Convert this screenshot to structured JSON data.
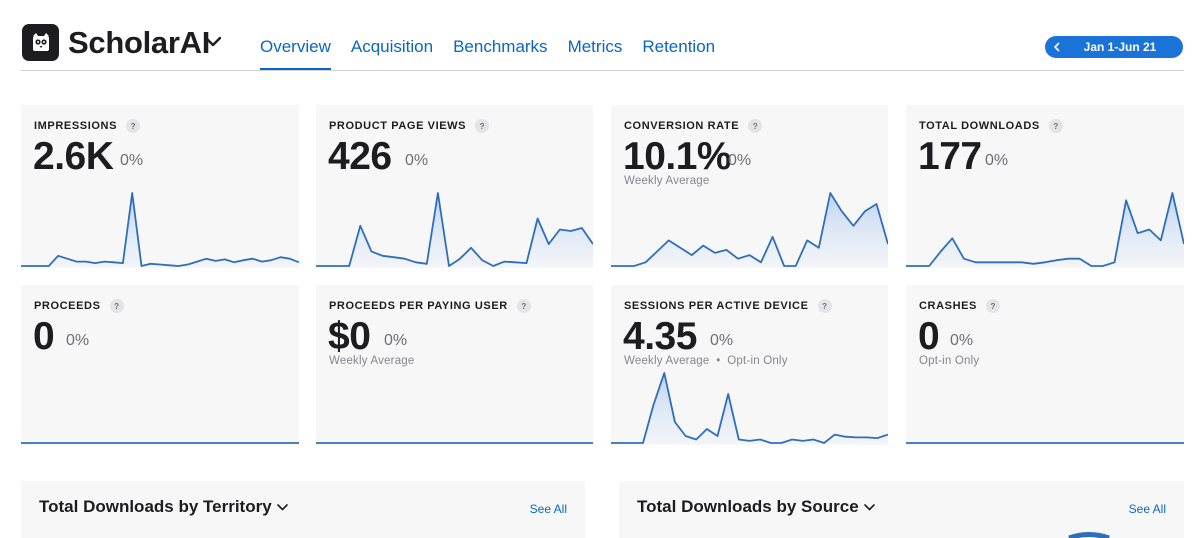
{
  "app": {
    "title": "ScholarAI"
  },
  "tabs": [
    {
      "label": "Overview",
      "active": true
    },
    {
      "label": "Acquisition"
    },
    {
      "label": "Benchmarks"
    },
    {
      "label": "Metrics"
    },
    {
      "label": "Retention"
    }
  ],
  "date_range": {
    "label": "Jan 1-Jun 21"
  },
  "colors": {
    "accent": "#0a66c2",
    "spark_line": "#2f6fb8",
    "card_bg": "#f7f7f8"
  },
  "metrics": [
    {
      "title": "IMPRESSIONS",
      "value": "2.6K",
      "change": "0%",
      "subtitle": "",
      "spark": [
        0,
        0,
        0,
        0,
        14,
        10,
        6,
        6,
        4,
        6,
        5,
        4,
        100,
        0,
        3,
        2,
        1,
        0,
        2,
        6,
        10,
        7,
        9,
        5,
        8,
        10,
        6,
        8,
        12,
        10,
        5
      ]
    },
    {
      "title": "PRODUCT PAGE VIEWS",
      "value": "426",
      "change": "0%",
      "subtitle": "",
      "spark": [
        0,
        0,
        0,
        0,
        55,
        20,
        14,
        12,
        10,
        5,
        3,
        100,
        0,
        10,
        25,
        8,
        0,
        6,
        5,
        4,
        65,
        30,
        50,
        48,
        52,
        30
      ]
    },
    {
      "title": "CONVERSION RATE",
      "value": "10.1%",
      "change": "0%",
      "subtitle": "Weekly Average",
      "spark": [
        0,
        0,
        0,
        5,
        20,
        35,
        25,
        15,
        28,
        18,
        22,
        10,
        15,
        5,
        40,
        0,
        0,
        35,
        25,
        100,
        75,
        55,
        75,
        85,
        30
      ]
    },
    {
      "title": "TOTAL DOWNLOADS",
      "value": "177",
      "change": "0%",
      "subtitle": "",
      "spark": [
        0,
        0,
        0,
        20,
        38,
        10,
        5,
        5,
        5,
        5,
        5,
        3,
        5,
        8,
        10,
        10,
        0,
        0,
        5,
        90,
        45,
        50,
        35,
        100,
        30
      ]
    },
    {
      "title": "PROCEEDS",
      "value": "0",
      "change": "0%",
      "subtitle": "",
      "spark": [
        0,
        0,
        0,
        0,
        0,
        0,
        0,
        0,
        0,
        0,
        0,
        0,
        0,
        0,
        0,
        0,
        0,
        0,
        0,
        0,
        0,
        0,
        0,
        0,
        0
      ]
    },
    {
      "title": "PROCEEDS PER PAYING USER",
      "value": "$0",
      "change": "0%",
      "subtitle": "Weekly Average",
      "spark": [
        0,
        0,
        0,
        0,
        0,
        0,
        0,
        0,
        0,
        0,
        0,
        0,
        0,
        0,
        0,
        0,
        0,
        0,
        0,
        0,
        0,
        0,
        0,
        0,
        0
      ]
    },
    {
      "title": "SESSIONS PER ACTIVE DEVICE",
      "value": "4.35",
      "change": "0%",
      "subtitle": "Weekly Average  •  Opt-in Only",
      "spark": [
        0,
        0,
        0,
        0,
        55,
        100,
        30,
        10,
        5,
        20,
        10,
        70,
        5,
        3,
        5,
        0,
        0,
        5,
        3,
        5,
        0,
        12,
        9,
        8,
        8,
        7,
        12
      ]
    },
    {
      "title": "CRASHES",
      "value": "0",
      "change": "0%",
      "subtitle": "Opt-in Only",
      "spark": [
        0,
        0,
        0,
        0,
        0,
        0,
        0,
        0,
        0,
        0,
        0,
        0,
        0,
        0,
        0,
        0,
        0,
        0,
        0,
        0,
        0,
        0,
        0,
        0,
        0
      ]
    }
  ],
  "panels": [
    {
      "title": "Total Downloads by Territory",
      "see_all": "See All"
    },
    {
      "title": "Total Downloads by Source",
      "see_all": "See All"
    }
  ]
}
